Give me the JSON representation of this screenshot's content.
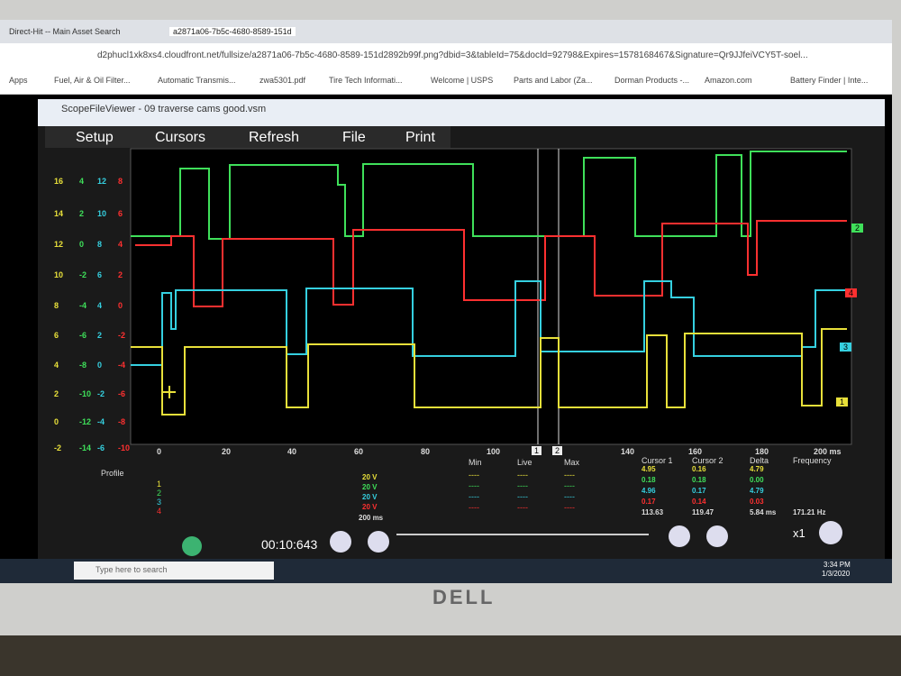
{
  "browser": {
    "tabs": [
      "Direct-Hit -- Main Asset Search",
      "a2871a06-7b5c-4680-8589-151d"
    ],
    "url": "d2phucl1xk8xs4.cloudfront.net/fullsize/a2871a06-7b5c-4680-8589-151d2892b99f.png?dbid=3&tableId=75&docId=92798&Expires=1578168467&Signature=Qr9JJfeiVCY5T-soel...",
    "bookmarks": [
      "Apps",
      "Fuel, Air & Oil Filter...",
      "Automatic Transmis...",
      "zwa5301.pdf",
      "Tire Tech Informati...",
      "Welcome | USPS",
      "Parts and Labor (Za...",
      "Dorman Products -...",
      "Amazon.com",
      "Battery Finder | Inte..."
    ]
  },
  "app": {
    "title": "ScopeFileViewer - 09 traverse cams good.vsm",
    "toolbar": [
      "Setup",
      "Cursors",
      "Refresh",
      "File",
      "Print"
    ]
  },
  "scope": {
    "y_scales": [
      [
        16,
        14,
        12,
        10,
        8,
        6,
        4,
        2,
        0,
        -2
      ],
      [
        4,
        2,
        0,
        -2,
        -4,
        -6,
        -8,
        -10,
        -12,
        -14
      ],
      [
        12,
        10,
        8,
        6,
        4,
        2,
        0,
        -2,
        -4,
        -6
      ],
      [
        8,
        6,
        4,
        2,
        0,
        -2,
        -4,
        -6,
        -8,
        -10
      ]
    ],
    "x_labels": [
      "0",
      "20",
      "40",
      "60",
      "80",
      "100",
      "140",
      "160",
      "180",
      "200 ms"
    ],
    "cursor_markers": [
      "1",
      "2"
    ],
    "channel_tags": [
      "2",
      "4",
      "3",
      "1"
    ]
  },
  "panel": {
    "profile": "Profile",
    "channels": [
      {
        "number": "1",
        "range": "20 V"
      },
      {
        "number": "2",
        "range": "20 V"
      },
      {
        "number": "3",
        "range": "20 V"
      },
      {
        "number": "4",
        "range": "20 V"
      }
    ],
    "time_span": "200 ms",
    "stats_headers": [
      "Min",
      "Live",
      "Max"
    ],
    "stats_rows": [
      [
        "----",
        "----",
        "----"
      ],
      [
        "----",
        "----",
        "----"
      ],
      [
        "----",
        "----",
        "----"
      ],
      [
        "----",
        "----",
        "----"
      ]
    ],
    "cursor_headers": [
      "Cursor 1",
      "Cursor 2",
      "Delta",
      "Frequency"
    ],
    "cursor_rows": [
      [
        "4.95",
        "0.16",
        "4.79"
      ],
      [
        "0.18",
        "0.18",
        "0.00"
      ],
      [
        "4.96",
        "0.17",
        "4.79"
      ],
      [
        "0.17",
        "0.14",
        "0.03"
      ],
      [
        "113.63",
        "119.47",
        "5.84 ms",
        "171.21 Hz"
      ]
    ],
    "elapsed": "00:10:643",
    "zoom": "x1"
  },
  "taskbar": {
    "search": "Type here to search",
    "time": "3:34 PM",
    "date": "1/3/2020"
  },
  "monitor": {
    "brand": "DELL"
  }
}
